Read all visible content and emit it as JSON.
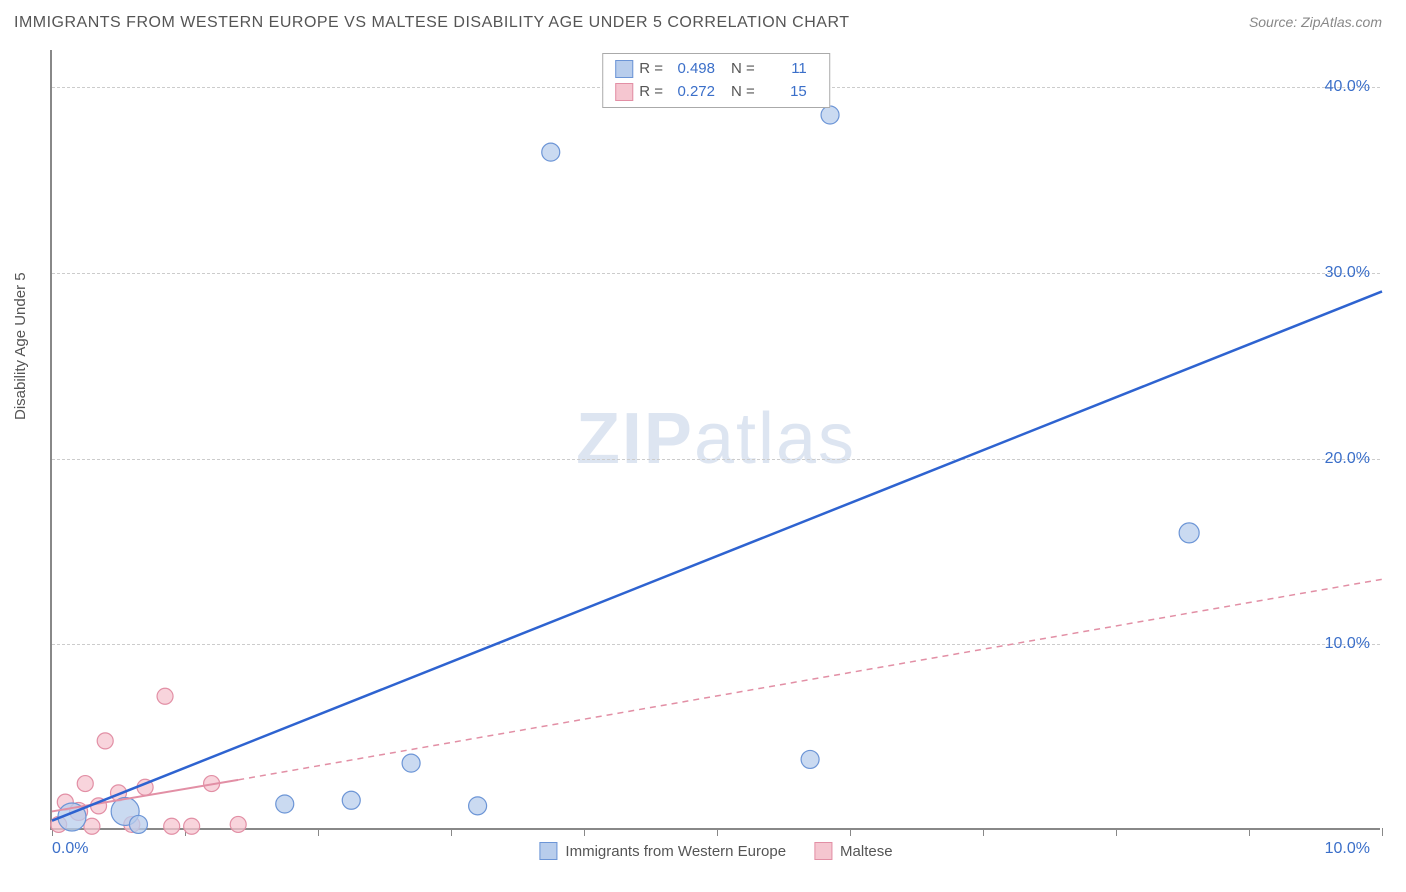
{
  "title": "IMMIGRANTS FROM WESTERN EUROPE VS MALTESE DISABILITY AGE UNDER 5 CORRELATION CHART",
  "source": "Source: ZipAtlas.com",
  "ylabel": "Disability Age Under 5",
  "watermark_bold": "ZIP",
  "watermark_rest": "atlas",
  "xlim": [
    0,
    10
  ],
  "ylim": [
    0,
    42
  ],
  "yticks": [
    10,
    20,
    30,
    40
  ],
  "ytick_labels": [
    "10.0%",
    "20.0%",
    "30.0%",
    "40.0%"
  ],
  "xticks": [
    0,
    1,
    2,
    3,
    4,
    5,
    6,
    7,
    8,
    9,
    10
  ],
  "xtick_labels_shown": {
    "0": "0.0%",
    "10": "10.0%"
  },
  "grid_color": "#cccccc",
  "axis_color": "#888888",
  "background_color": "#ffffff",
  "series": [
    {
      "name": "Immigrants from Western Europe",
      "color_fill": "#b8cdec",
      "color_stroke": "#6c95d6",
      "trend_color": "#2e63d0",
      "trend_width": 2.5,
      "trend_dash": "none",
      "R": "0.498",
      "N": "11",
      "marker_radius": 10,
      "points": [
        {
          "x": 0.15,
          "y": 0.7,
          "r": 14
        },
        {
          "x": 0.55,
          "y": 1.0,
          "r": 14
        },
        {
          "x": 0.65,
          "y": 0.3,
          "r": 9
        },
        {
          "x": 1.75,
          "y": 1.4,
          "r": 9
        },
        {
          "x": 2.25,
          "y": 1.6,
          "r": 9
        },
        {
          "x": 2.7,
          "y": 3.6,
          "r": 9
        },
        {
          "x": 3.2,
          "y": 1.3,
          "r": 9
        },
        {
          "x": 5.7,
          "y": 3.8,
          "r": 9
        },
        {
          "x": 3.75,
          "y": 36.5,
          "r": 9
        },
        {
          "x": 5.85,
          "y": 38.5,
          "r": 9
        },
        {
          "x": 8.55,
          "y": 16.0,
          "r": 10
        }
      ],
      "trend_line": {
        "x1": 0,
        "y1": 0.5,
        "x2": 10,
        "y2": 29.0
      }
    },
    {
      "name": "Maltese",
      "color_fill": "#f5c6d0",
      "color_stroke": "#e28fa5",
      "trend_color": "#e28fa5",
      "trend_width_solid": 2,
      "trend_width_dash": 1.5,
      "trend_dash_pattern": "6,5",
      "R": "0.272",
      "N": "15",
      "marker_radius": 9,
      "points": [
        {
          "x": 0.05,
          "y": 0.3,
          "r": 8
        },
        {
          "x": 0.1,
          "y": 1.5,
          "r": 8
        },
        {
          "x": 0.2,
          "y": 1.0,
          "r": 9
        },
        {
          "x": 0.25,
          "y": 2.5,
          "r": 8
        },
        {
          "x": 0.3,
          "y": 0.2,
          "r": 8
        },
        {
          "x": 0.35,
          "y": 1.3,
          "r": 8
        },
        {
          "x": 0.4,
          "y": 4.8,
          "r": 8
        },
        {
          "x": 0.5,
          "y": 2.0,
          "r": 8
        },
        {
          "x": 0.6,
          "y": 0.3,
          "r": 8
        },
        {
          "x": 0.7,
          "y": 2.3,
          "r": 8
        },
        {
          "x": 0.85,
          "y": 7.2,
          "r": 8
        },
        {
          "x": 0.9,
          "y": 0.2,
          "r": 8
        },
        {
          "x": 1.05,
          "y": 0.2,
          "r": 8
        },
        {
          "x": 1.2,
          "y": 2.5,
          "r": 8
        },
        {
          "x": 1.4,
          "y": 0.3,
          "r": 8
        }
      ],
      "trend_solid": {
        "x1": 0,
        "y1": 1.0,
        "x2": 1.4,
        "y2": 2.7
      },
      "trend_dash_line": {
        "x1": 1.4,
        "y1": 2.7,
        "x2": 10,
        "y2": 13.5
      }
    }
  ],
  "bottom_legend": [
    {
      "label": "Immigrants from Western Europe",
      "fill": "#b8cdec",
      "stroke": "#6c95d6"
    },
    {
      "label": "Maltese",
      "fill": "#f5c6d0",
      "stroke": "#e28fa5"
    }
  ],
  "legend_box_labels": {
    "R": "R =",
    "N": "N ="
  },
  "title_fontsize": 16,
  "label_fontsize": 15,
  "tick_fontsize": 16,
  "tick_color": "#3b6fc9"
}
